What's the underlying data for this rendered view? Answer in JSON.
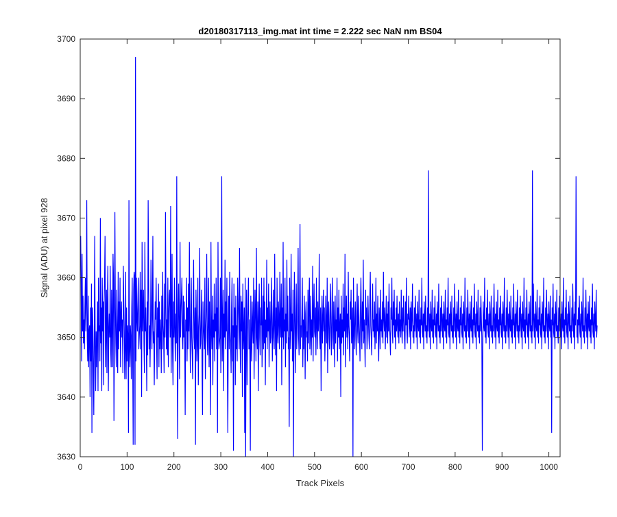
{
  "chart_data": {
    "type": "line",
    "title": "d20180317113_img.mat int time = 2.222 sec  NaN nm BS04",
    "xlabel": "Track Pixels",
    "ylabel": "Signal (ADU) at pixel 928",
    "xlim": [
      0,
      1024
    ],
    "ylim": [
      3630,
      3700
    ],
    "xticks": [
      0,
      100,
      200,
      300,
      400,
      500,
      600,
      700,
      800,
      900,
      1000
    ],
    "yticks": [
      3630,
      3640,
      3650,
      3660,
      3670,
      3680,
      3690,
      3700
    ],
    "grid": false,
    "legend": "none",
    "series": [
      {
        "color": "#0000ff",
        "x_start": 1,
        "x_step": 1,
        "values": [
          3667,
          3659,
          3646,
          3664,
          3651,
          3657,
          3649,
          3653,
          3648,
          3655,
          3660,
          3651,
          3656,
          3673,
          3650,
          3646,
          3657,
          3645,
          3651,
          3652,
          3640,
          3655,
          3646,
          3659,
          3634,
          3655,
          3652,
          3645,
          3637,
          3650,
          3667,
          3648,
          3641,
          3651,
          3645,
          3650,
          3656,
          3641,
          3660,
          3651,
          3652,
          3646,
          3670,
          3649,
          3655,
          3641,
          3660,
          3651,
          3656,
          3642,
          3656,
          3660,
          3667,
          3645,
          3650,
          3658,
          3644,
          3656,
          3662,
          3641,
          3651,
          3654,
          3650,
          3662,
          3648,
          3645,
          3658,
          3652,
          3645,
          3664,
          3660,
          3636,
          3650,
          3671,
          3655,
          3649,
          3645,
          3658,
          3650,
          3644,
          3661,
          3648,
          3656,
          3651,
          3660,
          3645,
          3654,
          3656,
          3650,
          3653,
          3644,
          3662,
          3656,
          3651,
          3643,
          3648,
          3661,
          3643,
          3655,
          3646,
          3652,
          3650,
          3634,
          3673,
          3648,
          3645,
          3652,
          3650,
          3643,
          3655,
          3660,
          3646,
          3632,
          3658,
          3661,
          3660,
          3632,
          3697,
          3646,
          3660,
          3653,
          3651,
          3656,
          3660,
          3648,
          3650,
          3652,
          3661,
          3648,
          3658,
          3640,
          3666,
          3651,
          3654,
          3658,
          3649,
          3644,
          3666,
          3651,
          3655,
          3650,
          3641,
          3656,
          3647,
          3673,
          3660,
          3648,
          3652,
          3645,
          3651,
          3663,
          3656,
          3648,
          3653,
          3667,
          3649,
          3651,
          3642,
          3650,
          3656,
          3653,
          3660,
          3649,
          3643,
          3655,
          3650,
          3659,
          3645,
          3656,
          3648,
          3653,
          3650,
          3644,
          3657,
          3648,
          3661,
          3652,
          3650,
          3644,
          3659,
          3650,
          3671,
          3655,
          3648,
          3653,
          3647,
          3660,
          3645,
          3654,
          3657,
          3658,
          3650,
          3672,
          3644,
          3652,
          3664,
          3648,
          3642,
          3656,
          3650,
          3660,
          3651,
          3646,
          3654,
          3649,
          3677,
          3648,
          3633,
          3655,
          3659,
          3651,
          3643,
          3666,
          3650,
          3654,
          3657,
          3660,
          3650,
          3648,
          3657,
          3650,
          3656,
          3649,
          3637,
          3653,
          3651,
          3660,
          3646,
          3655,
          3648,
          3659,
          3651,
          3666,
          3652,
          3644,
          3653,
          3660,
          3650,
          3647,
          3643,
          3656,
          3663,
          3650,
          3648,
          3655,
          3632,
          3658,
          3653,
          3646,
          3649,
          3660,
          3642,
          3651,
          3654,
          3665,
          3648,
          3649,
          3653,
          3658,
          3645,
          3637,
          3656,
          3652,
          3650,
          3648,
          3660,
          3643,
          3651,
          3655,
          3664,
          3650,
          3647,
          3653,
          3660,
          3645,
          3656,
          3649,
          3637,
          3666,
          3651,
          3648,
          3657,
          3642,
          3653,
          3650,
          3659,
          3646,
          3654,
          3651,
          3660,
          3648,
          3655,
          3634,
          3666,
          3652,
          3648,
          3649,
          3650,
          3660,
          3644,
          3653,
          3677,
          3646,
          3652,
          3658,
          3641,
          3654,
          3650,
          3663,
          3648,
          3656,
          3651,
          3660,
          3645,
          3634,
          3652,
          3657,
          3648,
          3661,
          3651,
          3649,
          3644,
          3655,
          3660,
          3646,
          3652,
          3631,
          3659,
          3650,
          3655,
          3642,
          3657,
          3648,
          3652,
          3646,
          3660,
          3656,
          3653,
          3648,
          3665,
          3650,
          3644,
          3657,
          3651,
          3656,
          3640,
          3659,
          3648,
          3651,
          3655,
          3634,
          3660,
          3630,
          3649,
          3658,
          3642,
          3651,
          3655,
          3660,
          3648,
          3653,
          3647,
          3631,
          3657,
          3650,
          3646,
          3656,
          3652,
          3649,
          3660,
          3643,
          3651,
          3658,
          3654,
          3646,
          3665,
          3650,
          3648,
          3656,
          3641,
          3653,
          3659,
          3650,
          3647,
          3655,
          3652,
          3660,
          3645,
          3651,
          3657,
          3648,
          3660,
          3649,
          3656,
          3642,
          3653,
          3650,
          3663,
          3648,
          3655,
          3651,
          3659,
          3645,
          3652,
          3656,
          3649,
          3650,
          3660,
          3654,
          3646,
          3651,
          3658,
          3650,
          3648,
          3664,
          3652,
          3647,
          3655,
          3641,
          3660,
          3651,
          3649,
          3656,
          3653,
          3648,
          3661,
          3652,
          3650,
          3659,
          3642,
          3655,
          3650,
          3666,
          3648,
          3653,
          3651,
          3660,
          3645,
          3654,
          3649,
          3663,
          3651,
          3657,
          3648,
          3650,
          3635,
          3660,
          3652,
          3648,
          3664,
          3651,
          3654,
          3646,
          3658,
          3630,
          3650,
          3661,
          3653,
          3644,
          3652,
          3659,
          3648,
          3651,
          3656,
          3665,
          3650,
          3647,
          3655,
          3669,
          3648,
          3652,
          3650,
          3654,
          3660,
          3645,
          3653,
          3648,
          3657,
          3652,
          3643,
          3654,
          3656,
          3650,
          3651,
          3646,
          3658,
          3649,
          3655,
          3660,
          3648,
          3651,
          3657,
          3647,
          3653,
          3650,
          3662,
          3646,
          3654,
          3659,
          3651,
          3650,
          3655,
          3647,
          3660,
          3652,
          3648,
          3656,
          3651,
          3653,
          3664,
          3650,
          3648,
          3655,
          3641,
          3652,
          3657,
          3649,
          3653,
          3658,
          3651,
          3655,
          3646,
          3650,
          3657,
          3652,
          3649,
          3660,
          3644,
          3653,
          3656,
          3650,
          3648,
          3655,
          3659,
          3651,
          3647,
          3654,
          3660,
          3650,
          3648,
          3656,
          3652,
          3645,
          3657,
          3649,
          3653,
          3651,
          3660,
          3646,
          3655,
          3650,
          3658,
          3648,
          3652,
          3654,
          3640,
          3657,
          3649,
          3653,
          3650,
          3659,
          3647,
          3655,
          3651,
          3664,
          3645,
          3652,
          3657,
          3650,
          3654,
          3648,
          3661,
          3652,
          3650,
          3646,
          3656,
          3653,
          3658,
          3649,
          3651,
          3655,
          3630,
          3660,
          3652,
          3648,
          3653,
          3656,
          3650,
          3647,
          3654,
          3659,
          3651,
          3649,
          3657,
          3653,
          3650,
          3646,
          3655,
          3660,
          3652,
          3648,
          3656,
          3651,
          3663,
          3649,
          3653,
          3650,
          3645,
          3658,
          3652,
          3655,
          3648,
          3651,
          3657,
          3653,
          3650,
          3648,
          3656,
          3661,
          3652,
          3650,
          3647,
          3654,
          3659,
          3651,
          3653,
          3650,
          3656,
          3648,
          3652,
          3660,
          3649,
          3654,
          3651,
          3657,
          3650,
          3646,
          3655,
          3652,
          3648,
          3658,
          3651,
          3653,
          3650,
          3656,
          3649,
          3661,
          3653,
          3651,
          3655,
          3648,
          3652,
          3657,
          3650,
          3654,
          3649,
          3656,
          3651,
          3659,
          3652,
          3650,
          3647,
          3655,
          3653,
          3660,
          3651,
          3649,
          3656,
          3652,
          3658,
          3650,
          3653,
          3648,
          3655,
          3651,
          3657,
          3652,
          3650,
          3654,
          3649,
          3656,
          3651,
          3653,
          3650,
          3658,
          3652,
          3649,
          3655,
          3651,
          3657,
          3653,
          3650,
          3648,
          3656,
          3652,
          3660,
          3651,
          3649,
          3654,
          3653,
          3657,
          3650,
          3652,
          3655,
          3648,
          3656,
          3651,
          3653,
          3659,
          3650,
          3652,
          3649,
          3655,
          3651,
          3657,
          3653,
          3650,
          3654,
          3648,
          3656,
          3652,
          3651,
          3658,
          3650,
          3653,
          3649,
          3655,
          3652,
          3660,
          3651,
          3650,
          3654,
          3648,
          3656,
          3653,
          3651,
          3657,
          3650,
          3652,
          3649,
          3655,
          3651,
          3678,
          3653,
          3650,
          3654,
          3648,
          3656,
          3652,
          3651,
          3658,
          3650,
          3653,
          3649,
          3655,
          3652,
          3657,
          3651,
          3650,
          3654,
          3648,
          3656,
          3653,
          3651,
          3659,
          3650,
          3652,
          3649,
          3655,
          3651,
          3657,
          3653,
          3650,
          3654,
          3648,
          3656,
          3652,
          3651,
          3658,
          3650,
          3653,
          3649,
          3655,
          3652,
          3660,
          3651,
          3650,
          3654,
          3648,
          3656,
          3653,
          3651,
          3657,
          3650,
          3652,
          3649,
          3655,
          3651,
          3659,
          3653,
          3650,
          3654,
          3648,
          3656,
          3652,
          3651,
          3658,
          3650,
          3653,
          3649,
          3655,
          3652,
          3657,
          3651,
          3650,
          3654,
          3648,
          3656,
          3653,
          3651,
          3660,
          3650,
          3652,
          3649,
          3655,
          3651,
          3658,
          3653,
          3650,
          3654,
          3648,
          3656,
          3652,
          3651,
          3657,
          3650,
          3653,
          3649,
          3655,
          3652,
          3659,
          3651,
          3650,
          3654,
          3648,
          3656,
          3653,
          3651,
          3658,
          3650,
          3652,
          3649,
          3655,
          3651,
          3657,
          3653,
          3650,
          3631,
          3648,
          3656,
          3652,
          3651,
          3660,
          3650,
          3653,
          3649,
          3655,
          3652,
          3658,
          3651,
          3650,
          3654,
          3648,
          3656,
          3653,
          3651,
          3657,
          3650,
          3652,
          3649,
          3655,
          3651,
          3659,
          3653,
          3650,
          3654,
          3648,
          3656,
          3652,
          3651,
          3658,
          3650,
          3653,
          3649,
          3655,
          3652,
          3657,
          3651,
          3650,
          3654,
          3648,
          3656,
          3653,
          3651,
          3660,
          3650,
          3652,
          3649,
          3655,
          3651,
          3658,
          3653,
          3650,
          3654,
          3648,
          3656,
          3652,
          3651,
          3657,
          3650,
          3653,
          3649,
          3655,
          3652,
          3659,
          3651,
          3650,
          3654,
          3648,
          3656,
          3653,
          3651,
          3658,
          3650,
          3652,
          3649,
          3655,
          3651,
          3657,
          3653,
          3650,
          3654,
          3648,
          3656,
          3652,
          3651,
          3660,
          3650,
          3653,
          3649,
          3655,
          3652,
          3658,
          3651,
          3650,
          3654,
          3648,
          3656,
          3653,
          3651,
          3657,
          3650,
          3652,
          3649,
          3678,
          3651,
          3659,
          3653,
          3650,
          3654,
          3648,
          3656,
          3652,
          3651,
          3658,
          3650,
          3653,
          3649,
          3655,
          3652,
          3657,
          3651,
          3650,
          3654,
          3648,
          3656,
          3653,
          3651,
          3660,
          3650,
          3652,
          3649,
          3655,
          3651,
          3658,
          3653,
          3650,
          3654,
          3648,
          3656,
          3652,
          3651,
          3657,
          3650,
          3653,
          3634,
          3655,
          3652,
          3659,
          3651,
          3650,
          3654,
          3648,
          3656,
          3653,
          3651,
          3658,
          3650,
          3652,
          3649,
          3655,
          3651,
          3657,
          3653,
          3650,
          3654,
          3648,
          3656,
          3652,
          3651,
          3660,
          3650,
          3653,
          3649,
          3655,
          3652,
          3658,
          3651,
          3650,
          3654,
          3648,
          3656,
          3653,
          3651,
          3657,
          3650,
          3652,
          3649,
          3655,
          3651,
          3659,
          3653,
          3650,
          3654,
          3648,
          3656,
          3652,
          3677,
          3658,
          3650,
          3653,
          3649,
          3655,
          3652,
          3657,
          3651,
          3650,
          3654,
          3648,
          3656,
          3653,
          3651,
          3660,
          3650,
          3652,
          3649,
          3655,
          3651,
          3658,
          3653,
          3650,
          3654,
          3648,
          3656,
          3652,
          3651,
          3657,
          3650,
          3653,
          3649,
          3655,
          3652,
          3659,
          3651,
          3650,
          3654,
          3648,
          3656,
          3653,
          3651,
          3658,
          3650,
          3652
        ]
      }
    ]
  }
}
